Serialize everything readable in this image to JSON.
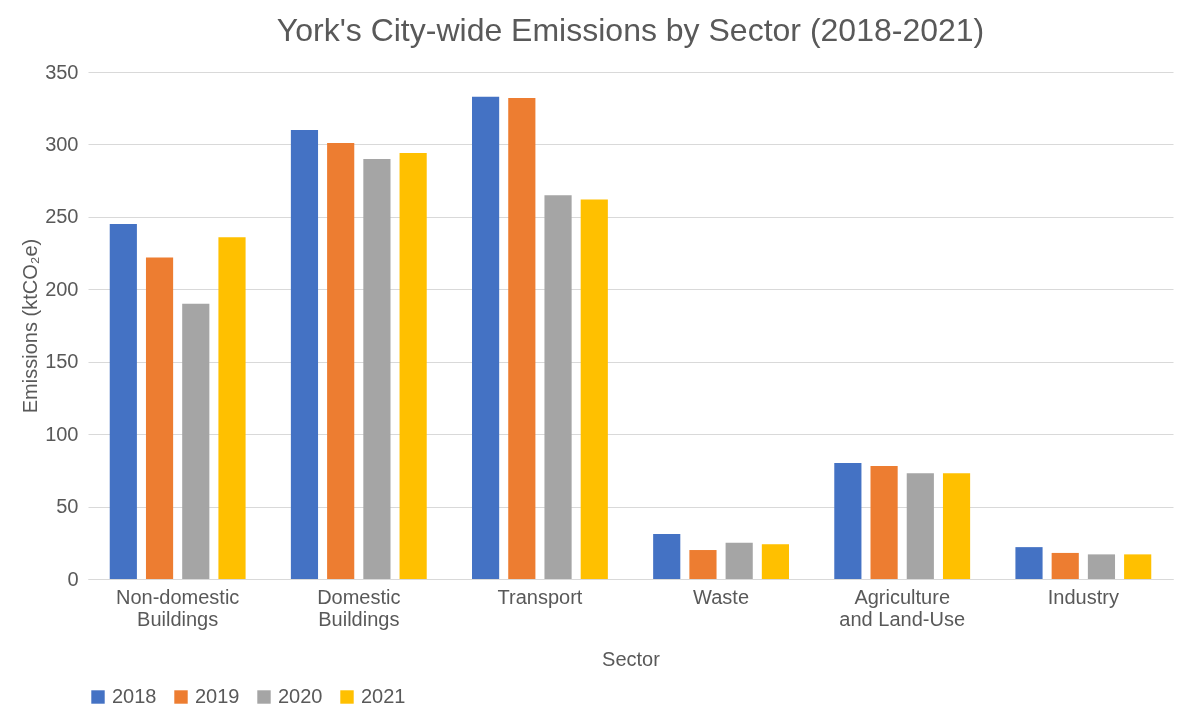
{
  "chart_data": {
    "type": "bar",
    "title": "York's City-wide Emissions by Sector (2018-2021)",
    "xlabel": "Sector",
    "ylabel": "Emissions (ktCO₂e)",
    "categories": [
      "Non-domestic Buildings",
      "Domestic Buildings",
      "Transport",
      "Waste",
      "Agriculture and Land-Use",
      "Industry"
    ],
    "series": [
      {
        "name": "2018",
        "color": "#4472c4",
        "values": [
          245,
          310,
          333,
          31,
          80,
          22
        ]
      },
      {
        "name": "2019",
        "color": "#ed7d31",
        "values": [
          222,
          301,
          332,
          20,
          78,
          18
        ]
      },
      {
        "name": "2020",
        "color": "#a5a5a5",
        "values": [
          190,
          290,
          265,
          25,
          73,
          17
        ]
      },
      {
        "name": "2021",
        "color": "#ffc000",
        "values": [
          236,
          294,
          262,
          24,
          73,
          17
        ]
      }
    ],
    "ylim": [
      0,
      350
    ],
    "yticks": [
      0,
      50,
      100,
      150,
      200,
      250,
      300,
      350
    ],
    "grid": "y",
    "legend": "bottom"
  }
}
